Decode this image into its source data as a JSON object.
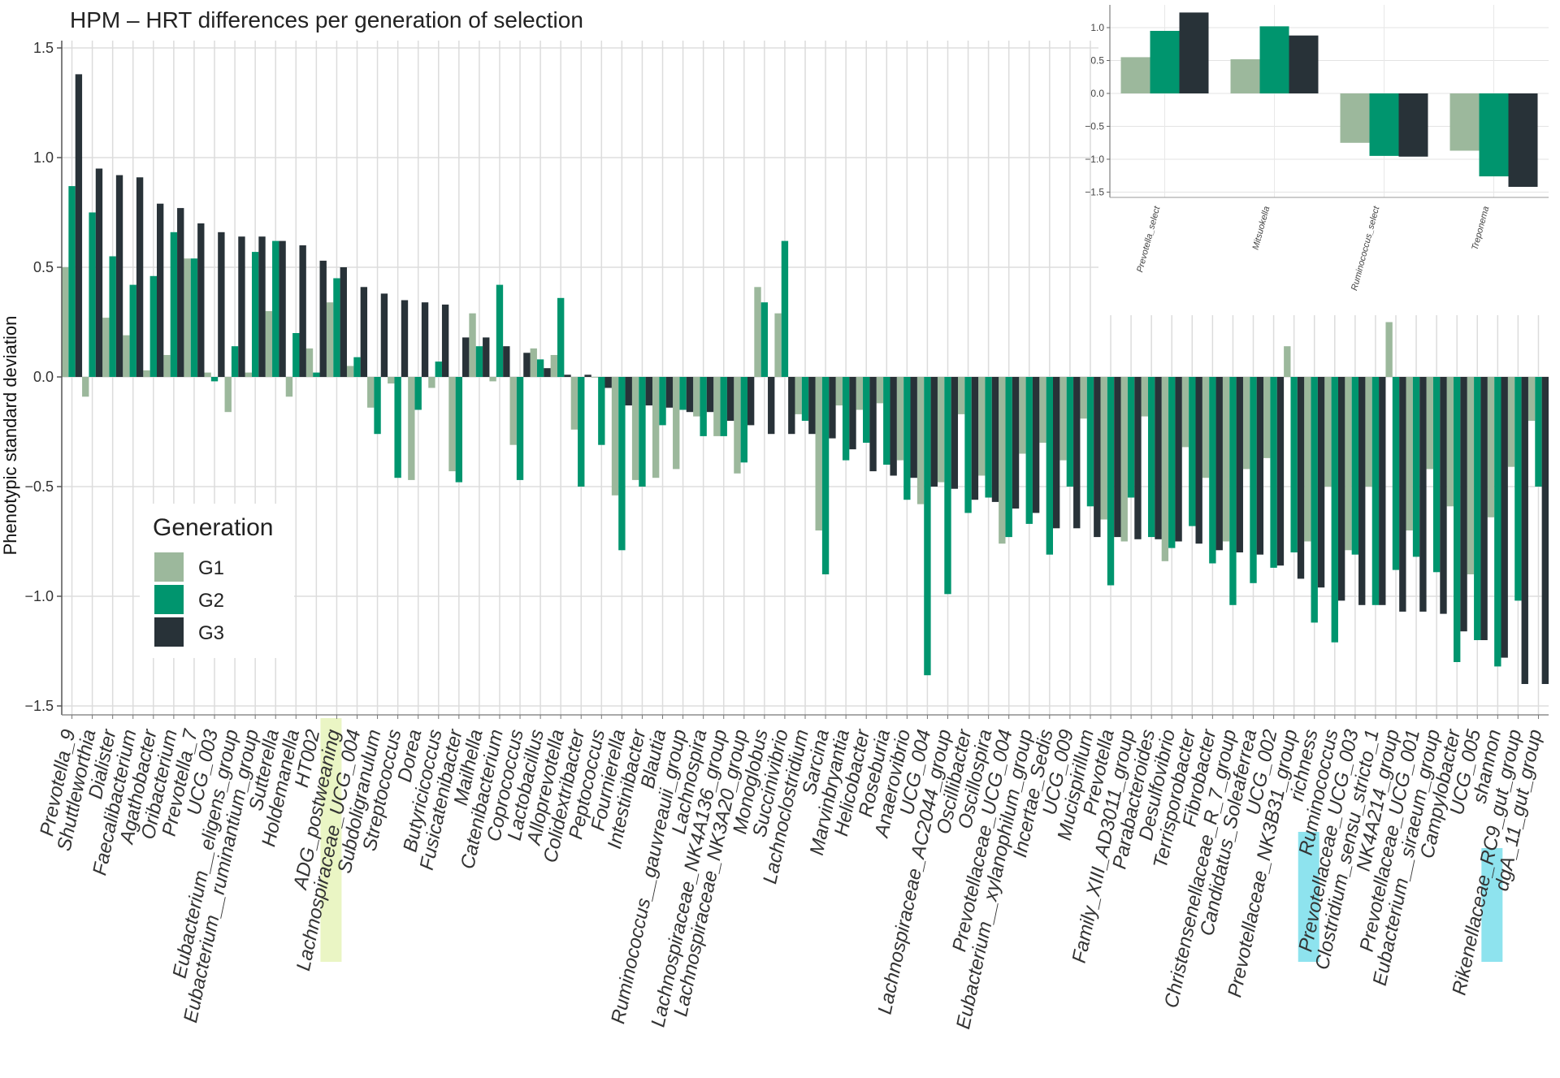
{
  "chart_data": [
    {
      "type": "bar",
      "title": "HPM – HRT differences per generation of selection",
      "xlabel": "",
      "ylabel": "Phenotypic standard deviation",
      "ylim": [
        -1.52,
        1.52
      ],
      "yticks": [
        -1.5,
        -1.0,
        -0.5,
        0.0,
        0.5,
        1.0,
        1.5
      ],
      "ytick_labels": [
        "−1.5",
        "−1.0",
        "−0.5",
        "0.0",
        "0.5",
        "1.0",
        "1.5"
      ],
      "grid": true,
      "legend": {
        "title": "Generation",
        "position": "bottom-left"
      },
      "colors": {
        "G1": "#9cb89c",
        "G2": "#00956e",
        "G3": "#283238"
      },
      "highlights": {
        "ADG_postweaning": "#eaf5c4",
        "richness": "#8ee3ee",
        "shannon": "#8ee3ee"
      },
      "categories": [
        "Prevotella_9",
        "Shuttleworthia",
        "Dialister",
        "Faecalibacterium",
        "Agathobacter",
        "Oribacterium",
        "Prevotella_7",
        "UCG_003",
        "Eubacterium__eligens_group",
        "Eubacterium__ruminantium_group",
        "Sutterella",
        "Holdemanella",
        "HT002",
        "ADG_postweaning",
        "Lachnospiraceae_UCG_004",
        "Subdoligranulum",
        "Streptococcus",
        "Dorea",
        "Butyricicoccus",
        "Fusicatenibacter",
        "Mailhella",
        "Catenibacterium",
        "Coprococcus",
        "Lactobacillus",
        "Alloprevotella",
        "Colidextribacter",
        "Peptococcus",
        "Fournierella",
        "Intestinibacter",
        "Blautia",
        "Ruminococcus__gauvreauii_group",
        "Lachnospira",
        "Lachnospiraceae_NK4A136_group",
        "Lachnospiraceae_NK3A20_group",
        "Monoglobus",
        "Succinivibrio",
        "Lachnoclostridium",
        "Sarcina",
        "Marvinbryantia",
        "Helicobacter",
        "Roseburia",
        "Anaerovibrio",
        "UCG_004",
        "Lachnospiraceae_AC2044_group",
        "Oscillibacter",
        "Oscillospira",
        "Prevotellaceae_UCG_004",
        "Eubacterium__xylanophilum_group",
        "Incertae_Sedis",
        "UCG_009",
        "Mucispirillum",
        "Prevotella",
        "Family_XIII_AD3011_group",
        "Parabacteroides",
        "Desulfovibrio",
        "Terrisporobacter",
        "Fibrobacter",
        "Christensenellaceae_R_7_group",
        "Candidatus_Soleaferrea",
        "UCG_002",
        "Prevotellaceae_NK3B31_group",
        "richness",
        "Ruminococcus",
        "Prevotellaceae_UCG_003",
        "Clostridium_sensu_stricto_1",
        "NK4A214_group",
        "Prevotellaceae_UCG_001",
        "Eubacterium__siraeum_group",
        "Campylobacter",
        "UCG_005",
        "shannon",
        "Rikenellaceae_RC9_gut_group",
        "dgA_11_gut_group"
      ],
      "series": [
        {
          "name": "G1",
          "values": [
            0.5,
            -0.09,
            0.27,
            0.19,
            0.03,
            0.1,
            0.54,
            0.02,
            -0.16,
            0.02,
            0.3,
            -0.09,
            0.13,
            0.34,
            0.05,
            -0.14,
            -0.03,
            -0.47,
            -0.05,
            -0.43,
            0.29,
            -0.02,
            -0.31,
            0.13,
            0.1,
            -0.24,
            0.0,
            -0.54,
            -0.47,
            -0.46,
            -0.42,
            -0.18,
            -0.27,
            -0.44,
            0.41,
            0.29,
            -0.17,
            -0.7,
            -0.13,
            -0.15,
            -0.12,
            -0.38,
            -0.58,
            -0.48,
            -0.17,
            -0.45,
            -0.76,
            -0.35,
            -0.3,
            -0.38,
            -0.19,
            -0.65,
            -0.75,
            -0.18,
            -0.84,
            -0.32,
            -0.46,
            -0.75,
            -0.42,
            -0.37,
            0.14,
            -0.75,
            -0.5,
            -0.79,
            -0.5,
            0.25,
            -0.7,
            -0.42,
            -0.59,
            -0.9,
            -0.64,
            -0.41,
            -0.2
          ]
        },
        {
          "name": "G2",
          "values": [
            0.87,
            0.75,
            0.55,
            0.42,
            0.46,
            0.66,
            0.54,
            -0.02,
            0.14,
            0.57,
            0.62,
            0.2,
            0.02,
            0.45,
            0.09,
            -0.26,
            -0.46,
            -0.15,
            0.07,
            -0.48,
            0.14,
            0.42,
            -0.47,
            0.08,
            0.36,
            -0.5,
            -0.31,
            -0.79,
            -0.5,
            -0.22,
            -0.15,
            -0.27,
            -0.27,
            -0.39,
            0.34,
            0.62,
            -0.2,
            -0.9,
            -0.38,
            -0.3,
            -0.4,
            -0.56,
            -1.36,
            -0.99,
            -0.62,
            -0.55,
            -0.73,
            -0.67,
            -0.81,
            -0.5,
            -0.59,
            -0.95,
            -0.55,
            -0.73,
            -0.78,
            -0.68,
            -0.85,
            -1.04,
            -0.94,
            -0.87,
            -0.8,
            -1.12,
            -1.21,
            -0.81,
            -1.04,
            -0.88,
            -0.82,
            -0.89,
            -1.3,
            -1.2,
            -1.32,
            -1.02,
            -0.5
          ]
        },
        {
          "name": "G3",
          "values": [
            1.38,
            0.95,
            0.92,
            0.91,
            0.79,
            0.77,
            0.7,
            0.66,
            0.64,
            0.64,
            0.62,
            0.6,
            0.53,
            0.5,
            0.41,
            0.38,
            0.35,
            0.34,
            0.33,
            0.18,
            0.18,
            0.14,
            0.11,
            0.04,
            0.01,
            0.01,
            -0.05,
            -0.13,
            -0.13,
            -0.14,
            -0.16,
            -0.16,
            -0.2,
            -0.22,
            -0.26,
            -0.26,
            -0.26,
            -0.28,
            -0.33,
            -0.43,
            -0.45,
            -0.46,
            -0.5,
            -0.51,
            -0.56,
            -0.57,
            -0.6,
            -0.62,
            -0.69,
            -0.69,
            -0.73,
            -0.73,
            -0.74,
            -0.74,
            -0.75,
            -0.76,
            -0.79,
            -0.8,
            -0.81,
            -0.86,
            -0.92,
            -0.96,
            -1.02,
            -1.04,
            -1.04,
            -1.07,
            -1.07,
            -1.08,
            -1.16,
            -1.2,
            -1.28,
            -1.4,
            -1.4
          ]
        }
      ]
    },
    {
      "type": "bar",
      "title": "",
      "xlabel": "",
      "ylabel": "",
      "ylim": [
        -1.55,
        1.25
      ],
      "yticks": [
        -1.5,
        -1.0,
        -0.5,
        0.0,
        0.5,
        1.0
      ],
      "ytick_labels": [
        "−1.5",
        "−1.0",
        "−0.5",
        "0.0",
        "0.5",
        "1.0"
      ],
      "grid": true,
      "legend": {
        "position": "none"
      },
      "categories": [
        "Prevotella_select",
        "Mitsuokella",
        "Ruminococcus_select",
        "Treponema"
      ],
      "series": [
        {
          "name": "G1",
          "values": [
            0.55,
            0.52,
            -0.75,
            -0.87
          ]
        },
        {
          "name": "G2",
          "values": [
            0.95,
            1.02,
            -0.95,
            -1.26
          ]
        },
        {
          "name": "G3",
          "values": [
            1.23,
            0.88,
            -0.96,
            -1.42
          ]
        }
      ]
    }
  ]
}
